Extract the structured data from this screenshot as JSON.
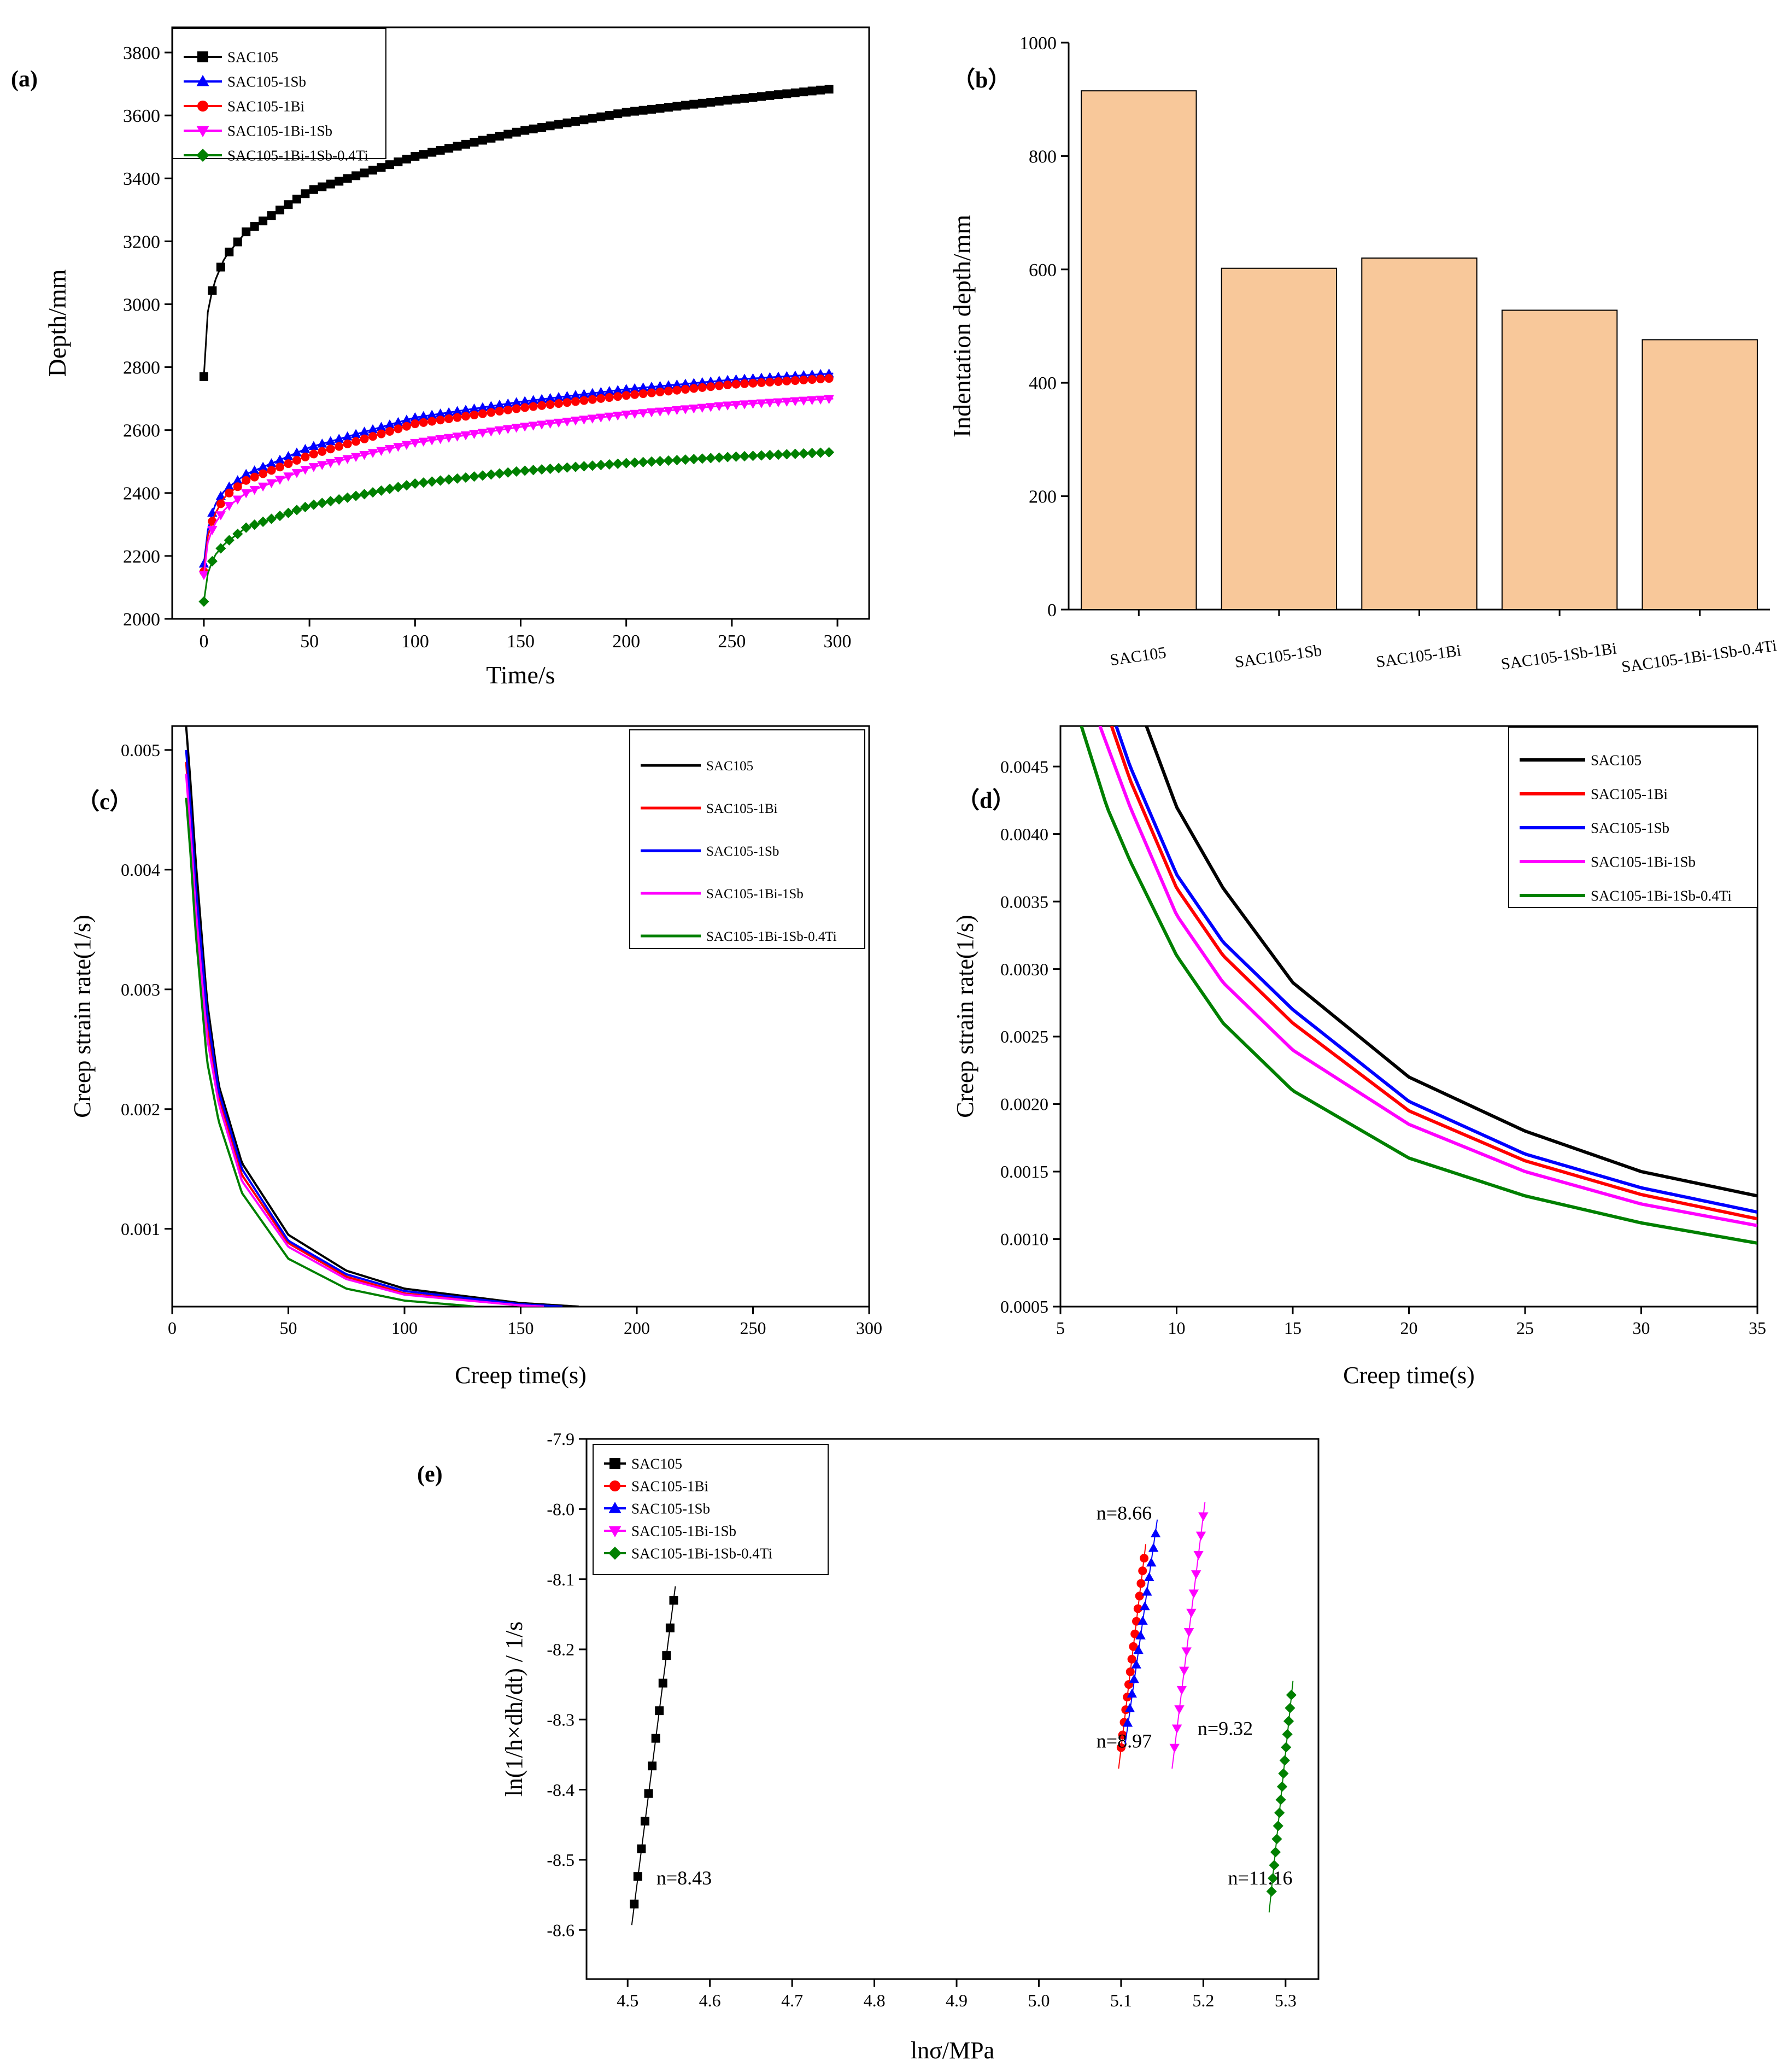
{
  "chart_data": [
    {
      "panel": "(a)",
      "type": "line",
      "xlabel": "Time/s",
      "ylabel": "Depth/mm",
      "xlim": [
        -15,
        315
      ],
      "ylim": [
        2000,
        3880
      ],
      "xticks": [
        0,
        50,
        100,
        150,
        200,
        250,
        300
      ],
      "yticks": [
        2000,
        2200,
        2400,
        2600,
        2800,
        3000,
        3200,
        3400,
        3600,
        3800
      ],
      "markers": true,
      "legend_position": "top-left",
      "series": [
        {
          "name": "SAC105",
          "color": "#000000",
          "marker": "square",
          "x": [
            0,
            2,
            5,
            10,
            20,
            50,
            100,
            150,
            200,
            250,
            298
          ],
          "y": [
            2770,
            2990,
            3070,
            3150,
            3230,
            3360,
            3470,
            3550,
            3610,
            3650,
            3685
          ]
        },
        {
          "name": "SAC105-1Sb",
          "color": "#0000ff",
          "marker": "triangle-up",
          "x": [
            0,
            2,
            5,
            10,
            20,
            50,
            100,
            150,
            200,
            250,
            298
          ],
          "y": [
            2175,
            2290,
            2360,
            2410,
            2460,
            2545,
            2640,
            2690,
            2730,
            2760,
            2780
          ]
        },
        {
          "name": "SAC105-1Bi",
          "color": "#ff0000",
          "marker": "circle",
          "x": [
            0,
            2,
            5,
            10,
            20,
            50,
            100,
            150,
            200,
            250,
            298
          ],
          "y": [
            2150,
            2270,
            2330,
            2390,
            2440,
            2520,
            2620,
            2670,
            2710,
            2745,
            2765
          ]
        },
        {
          "name": "SAC105-1Bi-1Sb",
          "color": "#ff00ff",
          "marker": "triangle-down",
          "x": [
            0,
            2,
            5,
            10,
            20,
            50,
            100,
            150,
            200,
            250,
            298
          ],
          "y": [
            2140,
            2250,
            2300,
            2350,
            2400,
            2480,
            2560,
            2610,
            2650,
            2680,
            2700
          ]
        },
        {
          "name": "SAC105-1Bi-1Sb-0.4Ti",
          "color": "#008000",
          "marker": "diamond",
          "x": [
            0,
            2,
            5,
            10,
            20,
            50,
            100,
            150,
            200,
            250,
            298
          ],
          "y": [
            2055,
            2150,
            2200,
            2240,
            2290,
            2360,
            2430,
            2470,
            2495,
            2515,
            2530
          ]
        }
      ]
    },
    {
      "panel": "（b）",
      "type": "bar",
      "ylabel": "Indentation depth/mm",
      "ylim": [
        0,
        1000
      ],
      "yticks": [
        0,
        200,
        400,
        600,
        800,
        1000
      ],
      "categories": [
        "SAC105",
        "SAC105-1Sb",
        "SAC105-1Bi",
        "SAC105-1Sb-1Bi",
        "SAC105-1Bi-1Sb-0.4Ti"
      ],
      "values": [
        915,
        602,
        620,
        528,
        476
      ],
      "bar_color": "#f8c89a",
      "bar_edge": "#000000"
    },
    {
      "panel": "（c）",
      "type": "line",
      "xlabel": "Creep time(s)",
      "ylabel": "Creep strain rate(1/s)",
      "xlim": [
        0,
        300
      ],
      "ylim": [
        0.00035,
        0.0052
      ],
      "xticks": [
        0,
        50,
        100,
        150,
        200,
        250,
        300
      ],
      "yticks": [
        0.001,
        0.002,
        0.003,
        0.004,
        0.005
      ],
      "ytick_labels": [
        "0.001",
        "0.002",
        "0.003",
        "0.004",
        "0.005"
      ],
      "legend_position": "top-right",
      "series": [
        {
          "name": "SAC105",
          "color": "#000000",
          "x": [
            6,
            8,
            10,
            15,
            20,
            30,
            50,
            75,
            100,
            150,
            175
          ],
          "y": [
            0.0052,
            0.0047,
            0.0041,
            0.0029,
            0.0022,
            0.00155,
            0.00095,
            0.00065,
            0.0005,
            0.00038,
            0.00035
          ]
        },
        {
          "name": "SAC105-1Bi",
          "color": "#ff0000",
          "x": [
            6,
            8,
            10,
            15,
            20,
            30,
            50,
            75,
            100,
            150,
            165
          ],
          "y": [
            0.0049,
            0.0044,
            0.0038,
            0.0027,
            0.0021,
            0.00145,
            0.00088,
            0.0006,
            0.00046,
            0.00036,
            0.00035
          ]
        },
        {
          "name": "SAC105-1Sb",
          "color": "#0000ff",
          "x": [
            6,
            8,
            10,
            15,
            20,
            30,
            50,
            75,
            100,
            150,
            168
          ],
          "y": [
            0.005,
            0.0045,
            0.0039,
            0.0028,
            0.00215,
            0.0015,
            0.0009,
            0.00062,
            0.00048,
            0.00037,
            0.00035
          ]
        },
        {
          "name": "SAC105-1Bi-1Sb",
          "color": "#ff00ff",
          "x": [
            6,
            8,
            10,
            15,
            20,
            30,
            50,
            75,
            100,
            150,
            160
          ],
          "y": [
            0.0048,
            0.0043,
            0.0037,
            0.0026,
            0.00205,
            0.0014,
            0.00085,
            0.00058,
            0.00045,
            0.00036,
            0.00035
          ]
        },
        {
          "name": "SAC105-1Bi-1Sb-0.4Ti",
          "color": "#008000",
          "x": [
            6,
            8,
            10,
            15,
            20,
            30,
            50,
            75,
            100,
            125,
            130
          ],
          "y": [
            0.0046,
            0.0041,
            0.0035,
            0.0024,
            0.0019,
            0.0013,
            0.00075,
            0.0005,
            0.0004,
            0.00036,
            0.00035
          ]
        }
      ]
    },
    {
      "panel": "（d）",
      "type": "line",
      "xlabel": "Creep time(s)",
      "ylabel": "Creep strain rate(1/s)",
      "xlim": [
        5,
        35
      ],
      "ylim": [
        0.0005,
        0.0048
      ],
      "xticks": [
        5,
        10,
        15,
        20,
        25,
        30,
        35
      ],
      "yticks": [
        0.0005,
        0.001,
        0.0015,
        0.002,
        0.0025,
        0.003,
        0.0035,
        0.004,
        0.0045
      ],
      "ytick_labels": [
        "0.0005",
        "0.0010",
        "0.0015",
        "0.0020",
        "0.0025",
        "0.0030",
        "0.0035",
        "0.0040",
        "0.0045"
      ],
      "legend_position": "top-right",
      "series": [
        {
          "name": "SAC105",
          "color": "#000000",
          "x": [
            8.7,
            10,
            12,
            15,
            20,
            25,
            30,
            35
          ],
          "y": [
            0.0048,
            0.0042,
            0.0036,
            0.0029,
            0.0022,
            0.0018,
            0.0015,
            0.00132
          ]
        },
        {
          "name": "SAC105-1Bi",
          "color": "#ff0000",
          "x": [
            7.2,
            8,
            10,
            12,
            15,
            20,
            25,
            30,
            35
          ],
          "y": [
            0.0048,
            0.0044,
            0.0036,
            0.0031,
            0.0026,
            0.00195,
            0.00158,
            0.00133,
            0.00115
          ]
        },
        {
          "name": "SAC105-1Sb",
          "color": "#0000ff",
          "x": [
            7.4,
            8,
            10,
            12,
            15,
            20,
            25,
            30,
            35
          ],
          "y": [
            0.0048,
            0.0045,
            0.0037,
            0.0032,
            0.0027,
            0.00202,
            0.00163,
            0.00138,
            0.0012
          ]
        },
        {
          "name": "SAC105-1Bi-1Sb",
          "color": "#ff00ff",
          "x": [
            6.7,
            8,
            10,
            12,
            15,
            20,
            25,
            30,
            35
          ],
          "y": [
            0.0048,
            0.0042,
            0.0034,
            0.0029,
            0.0024,
            0.00185,
            0.0015,
            0.00126,
            0.0011
          ]
        },
        {
          "name": "SAC105-1Bi-1Sb-0.4Ti",
          "color": "#008000",
          "x": [
            5.9,
            7,
            8,
            10,
            12,
            15,
            20,
            25,
            30,
            35
          ],
          "y": [
            0.0048,
            0.0042,
            0.0038,
            0.0031,
            0.0026,
            0.0021,
            0.0016,
            0.00132,
            0.00112,
            0.00097
          ]
        }
      ]
    },
    {
      "panel": "(e)",
      "type": "scatter",
      "xlabel": "lnσ/MPa",
      "ylabel": "ln(1/h×dh/dt) / 1/s",
      "xlim": [
        4.45,
        5.34
      ],
      "ylim": [
        -8.67,
        -7.9
      ],
      "xticks": [
        4.5,
        4.6,
        4.7,
        4.8,
        4.9,
        5.0,
        5.1,
        5.2,
        5.3
      ],
      "xtick_labels": [
        "4.5",
        "4.6",
        "4.7",
        "4.8",
        "4.9",
        "5.0",
        "5.1",
        "5.2",
        "5.3"
      ],
      "yticks": [
        -8.6,
        -8.5,
        -8.4,
        -8.3,
        -8.2,
        -8.1,
        -8.0,
        -7.9
      ],
      "ytick_labels": [
        "-8.6",
        "-8.5",
        "-8.4",
        "-8.3",
        "-8.2",
        "-8.1",
        "-8.0",
        "-7.9"
      ],
      "legend_position": "top-left",
      "fit_lines": true,
      "series": [
        {
          "name": "SAC105",
          "color": "#000000",
          "marker": "square",
          "x0": 4.508,
          "x1": 4.556,
          "y0": -8.563,
          "y1": -8.13,
          "count": 12,
          "n_label": "n=8.43",
          "label_at": [
            4.535,
            -8.535
          ]
        },
        {
          "name": "SAC105-1Bi",
          "color": "#ff0000",
          "marker": "circle",
          "x0": 5.1,
          "x1": 5.128,
          "y0": -8.34,
          "y1": -8.07,
          "count": 16,
          "n_label": "n=8.97",
          "label_at": [
            5.07,
            -8.34
          ]
        },
        {
          "name": "SAC105-1Sb",
          "color": "#0000ff",
          "marker": "triangle-up",
          "x0": 5.108,
          "x1": 5.142,
          "y0": -8.305,
          "y1": -8.035,
          "count": 14,
          "n_label": "n=8.66",
          "label_at": [
            5.07,
            -8.015
          ]
        },
        {
          "name": "SAC105-1Bi-1Sb",
          "color": "#ff00ff",
          "marker": "triangle-down",
          "x0": 5.165,
          "x1": 5.2,
          "y0": -8.34,
          "y1": -8.01,
          "count": 13,
          "n_label": "n=9.32",
          "label_at": [
            5.193,
            -8.322
          ]
        },
        {
          "name": "SAC105-1Bi-1Sb-0.4Ti",
          "color": "#008000",
          "marker": "diamond",
          "x0": 5.283,
          "x1": 5.307,
          "y0": -8.545,
          "y1": -8.265,
          "count": 16,
          "n_label": "n=11.16",
          "label_at": [
            5.23,
            -8.535
          ]
        }
      ]
    }
  ]
}
